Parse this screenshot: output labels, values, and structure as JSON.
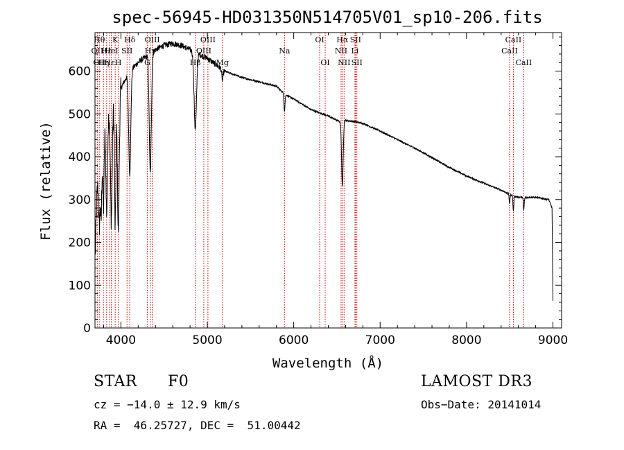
{
  "chart_data": {
    "type": "line",
    "title": "spec-56945-HD031350N514705V01_sp10-206.fits",
    "xlabel": "Wavelength (Å)",
    "ylabel": "Flux (relative)",
    "xlim": [
      3700,
      9100
    ],
    "ylim": [
      0,
      690
    ],
    "x_ticks": [
      4000,
      5000,
      6000,
      7000,
      8000,
      9000
    ],
    "y_ticks": [
      0,
      100,
      200,
      300,
      400,
      500,
      600
    ],
    "line_color": "#000000",
    "marker_color": "#cc0000",
    "continuum": {
      "x": [
        3700,
        3720,
        3760,
        3800,
        3850,
        3900,
        3950,
        4000,
        4050,
        4100,
        4200,
        4300,
        4400,
        4500,
        4600,
        4700,
        4800,
        4900,
        5000,
        5100,
        5200,
        5400,
        5600,
        5800,
        5900,
        6000,
        6200,
        6400,
        6550,
        6600,
        6700,
        6800,
        7000,
        7200,
        7400,
        7600,
        7800,
        8000,
        8200,
        8400,
        8500,
        8600,
        8800,
        8950,
        8990,
        9000
      ],
      "y": [
        150,
        300,
        420,
        480,
        500,
        520,
        540,
        560,
        580,
        600,
        620,
        635,
        650,
        660,
        665,
        660,
        650,
        640,
        630,
        615,
        600,
        585,
        575,
        565,
        545,
        535,
        510,
        495,
        480,
        485,
        482,
        478,
        460,
        440,
        420,
        398,
        375,
        355,
        338,
        322,
        312,
        305,
        305,
        300,
        280,
        50
      ]
    },
    "absorption_features": [
      {
        "center": 3750,
        "depth": 150,
        "width": 8
      },
      {
        "center": 3771,
        "depth": 180,
        "width": 8
      },
      {
        "center": 3798,
        "depth": 200,
        "width": 8
      },
      {
        "center": 3835,
        "depth": 220,
        "width": 9
      },
      {
        "center": 3889,
        "depth": 260,
        "width": 10
      },
      {
        "center": 3934,
        "depth": 300,
        "width": 8
      },
      {
        "center": 3970,
        "depth": 320,
        "width": 10
      },
      {
        "center": 4102,
        "depth": 240,
        "width": 12
      },
      {
        "center": 4340,
        "depth": 280,
        "width": 12
      },
      {
        "center": 4861,
        "depth": 180,
        "width": 14
      },
      {
        "center": 5175,
        "depth": 25,
        "width": 8
      },
      {
        "center": 5893,
        "depth": 40,
        "width": 6
      },
      {
        "center": 6563,
        "depth": 150,
        "width": 9
      },
      {
        "center": 8498,
        "depth": 20,
        "width": 5
      },
      {
        "center": 8542,
        "depth": 35,
        "width": 5
      },
      {
        "center": 8662,
        "depth": 30,
        "width": 5
      }
    ],
    "line_markers": [
      {
        "x": 3727,
        "labels": [
          {
            "text": "OII",
            "row": 2
          }
        ]
      },
      {
        "x": 3750,
        "labels": [
          {
            "text": "Hθ",
            "row": 1
          },
          {
            "text": "OII",
            "row": 3
          }
        ]
      },
      {
        "x": 3798,
        "labels": [
          {
            "text": "Hη",
            "row": 3
          }
        ]
      },
      {
        "x": 3835,
        "labels": [
          {
            "text": "Hε",
            "row": 2
          }
        ]
      },
      {
        "x": 3869,
        "labels": [
          {
            "text": "Hε",
            "row": 3
          }
        ]
      },
      {
        "x": 3889,
        "labels": [
          {
            "text": "HeI",
            "row": 2
          }
        ]
      },
      {
        "x": 3934,
        "labels": [
          {
            "text": "K",
            "row": 1
          }
        ]
      },
      {
        "x": 3970,
        "labels": [
          {
            "text": "H",
            "row": 3
          }
        ]
      },
      {
        "x": 4071,
        "labels": [
          {
            "text": "SII",
            "row": 2
          }
        ]
      },
      {
        "x": 4102,
        "labels": [
          {
            "text": "Hδ",
            "row": 1
          }
        ]
      },
      {
        "x": 4305,
        "labels": [
          {
            "text": "G",
            "row": 3
          }
        ]
      },
      {
        "x": 4340,
        "labels": [
          {
            "text": "Hγ",
            "row": 2
          }
        ]
      },
      {
        "x": 4363,
        "labels": [
          {
            "text": "OIII",
            "row": 1
          }
        ]
      },
      {
        "x": 4861,
        "labels": [
          {
            "text": "Hβ",
            "row": 3
          }
        ]
      },
      {
        "x": 4959,
        "labels": [
          {
            "text": "OIII",
            "row": 2
          }
        ]
      },
      {
        "x": 5007,
        "labels": [
          {
            "text": "OIII",
            "row": 1
          }
        ]
      },
      {
        "x": 5175,
        "labels": [
          {
            "text": "Mg",
            "row": 3
          }
        ]
      },
      {
        "x": 5893,
        "labels": [
          {
            "text": "Na",
            "row": 2
          }
        ]
      },
      {
        "x": 6300,
        "labels": [
          {
            "text": "OI",
            "row": 1
          }
        ]
      },
      {
        "x": 6364,
        "labels": [
          {
            "text": "OI",
            "row": 3
          }
        ]
      },
      {
        "x": 6548,
        "labels": [
          {
            "text": "NII",
            "row": 2
          }
        ]
      },
      {
        "x": 6563,
        "labels": [
          {
            "text": "Hα",
            "row": 1
          }
        ]
      },
      {
        "x": 6583,
        "labels": [
          {
            "text": "NII",
            "row": 3
          }
        ]
      },
      {
        "x": 6708,
        "labels": [
          {
            "text": "Li",
            "row": 2
          }
        ]
      },
      {
        "x": 6716,
        "labels": [
          {
            "text": "SII",
            "row": 1
          }
        ]
      },
      {
        "x": 6731,
        "labels": [
          {
            "text": "SII",
            "row": 3
          }
        ]
      },
      {
        "x": 8498,
        "labels": [
          {
            "text": "CaII",
            "row": 2
          }
        ]
      },
      {
        "x": 8542,
        "labels": [
          {
            "text": "CaII",
            "row": 1
          }
        ]
      },
      {
        "x": 8662,
        "labels": [
          {
            "text": "CaII",
            "row": 3
          }
        ]
      }
    ]
  },
  "info": {
    "object_class": "STAR",
    "subclass": "F0",
    "survey": "LAMOST DR3",
    "redshift": "cz = −14.0 ± 12.9 km/s",
    "obs_date": "Obs−Date: 20141014",
    "coords": "RA =  46.25727, DEC =  51.00442"
  }
}
